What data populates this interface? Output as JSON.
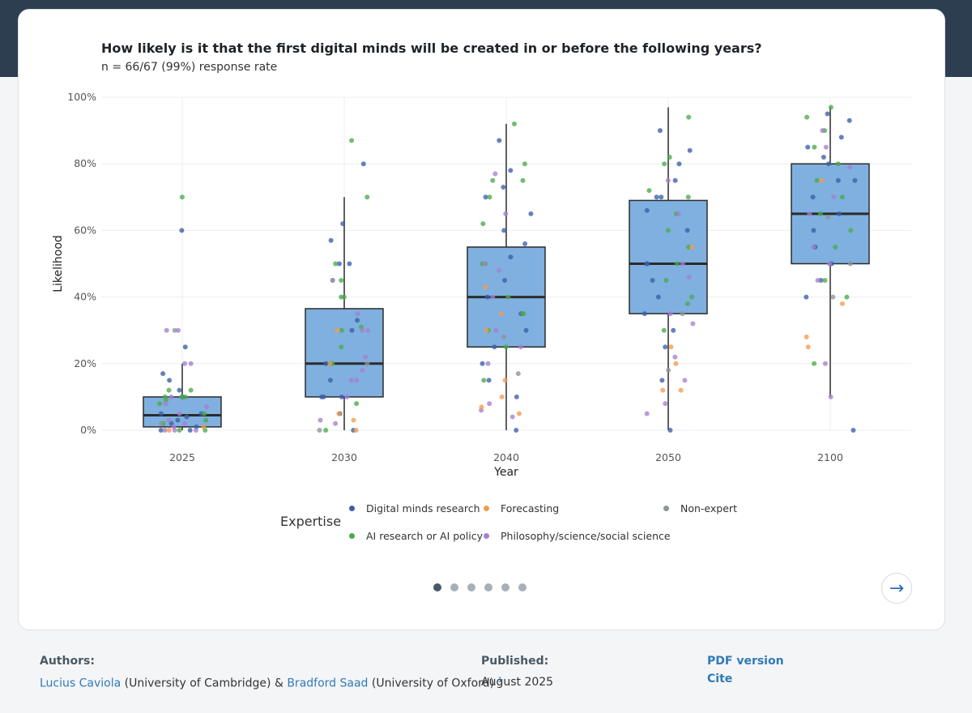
{
  "chart_data": {
    "type": "box",
    "title": "How likely is it that the first digital minds will be created in or before the following years?",
    "subtitle": "n = 66/67 (99%) response rate",
    "xlabel": "Year",
    "ylabel": "Likelihood",
    "categories": [
      "2025",
      "2030",
      "2040",
      "2050",
      "2100"
    ],
    "ylim": [
      0,
      100
    ],
    "y_ticks": [
      0,
      20,
      40,
      60,
      80,
      100
    ],
    "y_tick_labels": [
      "0%",
      "20%",
      "40%",
      "60%",
      "80%",
      "100%"
    ],
    "grid": true,
    "boxes": [
      {
        "category": "2025",
        "min": 0,
        "q1": 1,
        "median": 4.5,
        "q3": 10,
        "max": 20
      },
      {
        "category": "2030",
        "min": 0,
        "q1": 10,
        "median": 20,
        "q3": 36.5,
        "max": 70
      },
      {
        "category": "2040",
        "min": 0,
        "q1": 25,
        "median": 40,
        "q3": 55,
        "max": 92
      },
      {
        "category": "2050",
        "min": 0,
        "q1": 35,
        "median": 50,
        "q3": 69,
        "max": 97
      },
      {
        "category": "2100",
        "min": 10,
        "q1": 50,
        "median": 65,
        "q3": 80,
        "max": 97
      }
    ],
    "legend": {
      "title": "Expertise",
      "placement": "bottom",
      "entries": [
        {
          "name": "Digital minds research",
          "color": "#3b5fa8"
        },
        {
          "name": "Forecasting",
          "color": "#f39b4e"
        },
        {
          "name": "Non-expert",
          "color": "#8e9399"
        },
        {
          "name": "AI research or AI policy",
          "color": "#4aab4a"
        },
        {
          "name": "Philosophy/science/social science",
          "color": "#a57fd0"
        }
      ]
    },
    "points": [
      {
        "category": "2025",
        "group": "Digital minds research",
        "values": [
          60,
          25,
          17,
          15,
          12,
          10,
          5,
          5,
          4,
          3,
          2,
          1,
          0,
          0
        ]
      },
      {
        "category": "2025",
        "group": "AI research or AI policy",
        "values": [
          70,
          12,
          12,
          10,
          10,
          10,
          9,
          8,
          5,
          3,
          2,
          0,
          0
        ]
      },
      {
        "category": "2025",
        "group": "Philosophy/science/social science",
        "values": [
          30,
          30,
          20,
          20,
          10,
          8,
          7,
          5,
          3,
          2,
          1,
          0,
          0,
          0
        ]
      },
      {
        "category": "2025",
        "group": "Non-expert",
        "values": [
          30,
          2
        ]
      },
      {
        "category": "2025",
        "group": "Forecasting",
        "values": [
          1,
          0
        ]
      },
      {
        "category": "2030",
        "group": "Digital minds research",
        "values": [
          80,
          62,
          57,
          50,
          50,
          33,
          30,
          20,
          15,
          10,
          10,
          10,
          5,
          0
        ]
      },
      {
        "category": "2030",
        "group": "AI research or AI policy",
        "values": [
          87,
          70,
          50,
          45,
          40,
          40,
          31,
          30,
          25,
          20,
          20,
          8,
          0
        ]
      },
      {
        "category": "2030",
        "group": "Philosophy/science/social science",
        "values": [
          45,
          35,
          30,
          30,
          22,
          18,
          15,
          15,
          10,
          3,
          2
        ]
      },
      {
        "category": "2030",
        "group": "Forecasting",
        "values": [
          30,
          20,
          5,
          3,
          0
        ]
      },
      {
        "category": "2030",
        "group": "Non-expert",
        "values": [
          45,
          20,
          0
        ]
      },
      {
        "category": "2040",
        "group": "Digital minds research",
        "values": [
          87,
          78,
          73,
          70,
          65,
          60,
          56,
          52,
          45,
          40,
          35,
          30,
          25,
          20,
          15,
          10,
          0
        ]
      },
      {
        "category": "2040",
        "group": "AI research or AI policy",
        "values": [
          92,
          80,
          75,
          75,
          70,
          62,
          50,
          50,
          40,
          35,
          35,
          30,
          25,
          15
        ]
      },
      {
        "category": "2040",
        "group": "Philosophy/science/social science",
        "values": [
          77,
          65,
          50,
          48,
          40,
          30,
          25,
          20,
          8,
          6,
          4
        ]
      },
      {
        "category": "2040",
        "group": "Forecasting",
        "values": [
          43,
          35,
          30,
          15,
          10,
          7,
          5
        ]
      },
      {
        "category": "2040",
        "group": "Non-expert",
        "values": [
          28,
          17
        ]
      },
      {
        "category": "2050",
        "group": "Digital minds research",
        "values": [
          90,
          84,
          80,
          75,
          70,
          70,
          66,
          60,
          50,
          50,
          45,
          40,
          35,
          30,
          25,
          15,
          0
        ]
      },
      {
        "category": "2050",
        "group": "AI research or AI policy",
        "values": [
          94,
          82,
          80,
          72,
          70,
          65,
          60,
          55,
          50,
          45,
          40,
          38,
          30
        ]
      },
      {
        "category": "2050",
        "group": "Philosophy/science/social science",
        "values": [
          75,
          65,
          50,
          46,
          35,
          32,
          22,
          15,
          8,
          5
        ]
      },
      {
        "category": "2050",
        "group": "Forecasting",
        "values": [
          55,
          25,
          20,
          12,
          12
        ]
      },
      {
        "category": "2050",
        "group": "Non-expert",
        "values": [
          35,
          18
        ]
      },
      {
        "category": "2100",
        "group": "Digital minds research",
        "values": [
          95,
          93,
          88,
          85,
          82,
          80,
          75,
          75,
          70,
          65,
          60,
          55,
          50,
          45,
          40,
          0
        ]
      },
      {
        "category": "2100",
        "group": "AI research or AI policy",
        "values": [
          97,
          94,
          90,
          85,
          80,
          75,
          70,
          65,
          60,
          55,
          45,
          40,
          20
        ]
      },
      {
        "category": "2100",
        "group": "Philosophy/science/social science",
        "values": [
          90,
          85,
          79,
          70,
          65,
          55,
          50,
          45,
          20,
          10
        ]
      },
      {
        "category": "2100",
        "group": "Forecasting",
        "values": [
          75,
          28,
          25,
          38
        ]
      },
      {
        "category": "2100",
        "group": "Non-expert",
        "values": [
          64,
          40,
          50
        ]
      }
    ]
  },
  "pager": {
    "count": 6,
    "active": 0
  },
  "next_icon": "→",
  "footer": {
    "authors_label": "Authors:",
    "author1_name": "Lucius Caviola",
    "author1_affil": "(University of Cambridge) &",
    "author2_name": "Bradford Saad",
    "author2_affil": "(University of Oxford)",
    "footnote_mark": "1",
    "published_label": "Published:",
    "published_date": "August 2025",
    "pdf_link": "PDF version",
    "cite_link": "Cite"
  }
}
